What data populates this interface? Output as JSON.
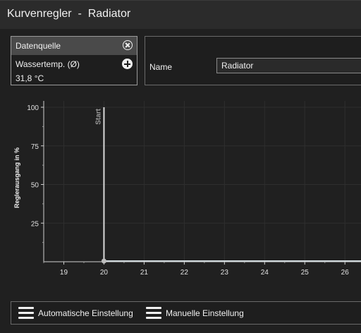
{
  "window": {
    "title": "Kurvenregler  -  Radiator"
  },
  "datasource": {
    "header": "Datenquelle",
    "source_label": "Wassertemp. (Ø)",
    "value": "31,8 °C",
    "close_icon": "close-circle-icon",
    "add_icon": "add-circle-icon"
  },
  "name_field": {
    "label": "Name",
    "value": "Radiator"
  },
  "chart_data": {
    "type": "line",
    "ylabel": "Reglerausgang in %",
    "xlabel": "",
    "x_ticks": [
      "19",
      "20",
      "21",
      "22",
      "23",
      "24",
      "25",
      "26"
    ],
    "y_ticks": [
      "25",
      "50",
      "75",
      "100"
    ],
    "xlim": [
      18.5,
      26.4
    ],
    "ylim": [
      0,
      100
    ],
    "start_marker": {
      "x": 20,
      "label": "Start"
    },
    "series": [
      {
        "values": [
          [
            20,
            0
          ],
          [
            26.4,
            0
          ]
        ]
      }
    ],
    "grid": true,
    "colors": {
      "line": "#cfd8dc",
      "start": "#d9d9d9",
      "grid": "#2e2e2e"
    }
  },
  "bottom_bar": {
    "auto_label": "Automatische Einstellung",
    "manual_label": "Manuelle Einstellung",
    "icon": "hamburger-menu-icon"
  }
}
